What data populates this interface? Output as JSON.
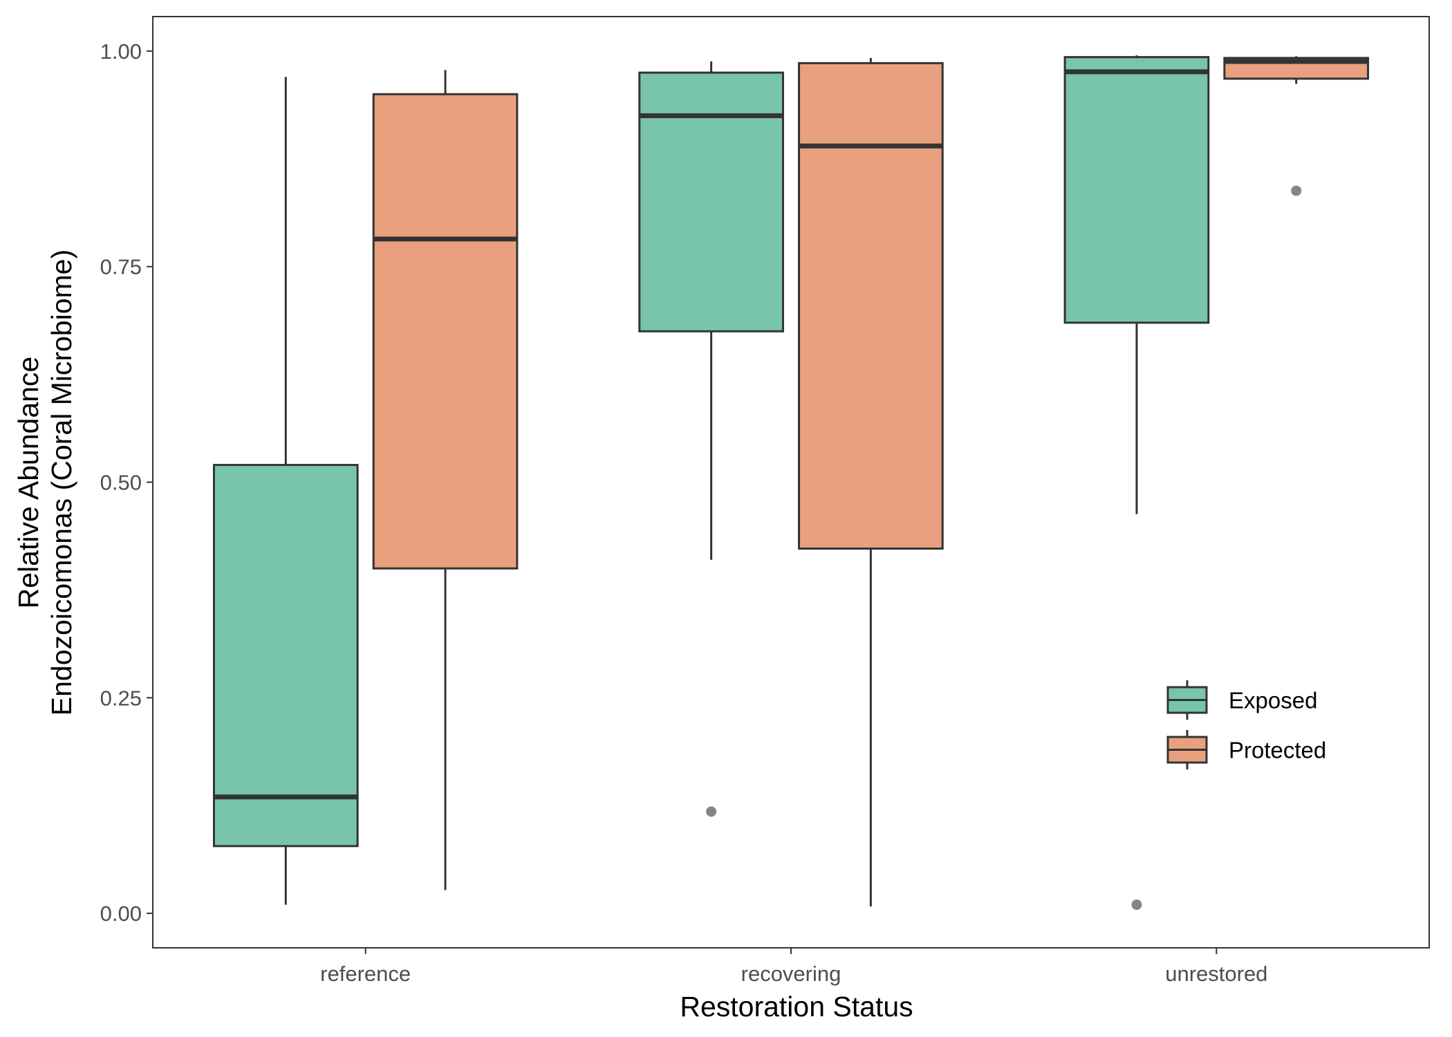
{
  "chart_data": {
    "type": "boxplot",
    "xlabel": "Restoration Status",
    "ylabel_lines": [
      "Relative Abundance",
      "Endozoicomonas (Coral Microbiome)"
    ],
    "categories": [
      "reference",
      "recovering",
      "unrestored"
    ],
    "ylim": [
      -0.04,
      1.04
    ],
    "yticks": [
      0.0,
      0.25,
      0.5,
      0.75,
      1.0
    ],
    "ytick_labels": [
      "0.00",
      "0.25",
      "0.50",
      "0.75",
      "1.00"
    ],
    "grid": false,
    "legend_position": "bottom-right inside",
    "series": [
      {
        "name": "Exposed",
        "color": "#78c5ab",
        "boxes": [
          {
            "category": "reference",
            "whisker_low": 0.01,
            "q1": 0.078,
            "median": 0.135,
            "q3": 0.52,
            "whisker_high": 0.97,
            "outliers": []
          },
          {
            "category": "recovering",
            "whisker_low": 0.41,
            "q1": 0.675,
            "median": 0.925,
            "q3": 0.975,
            "whisker_high": 0.988,
            "outliers": [
              0.118
            ]
          },
          {
            "category": "unrestored",
            "whisker_low": 0.463,
            "q1": 0.685,
            "median": 0.976,
            "q3": 0.993,
            "whisker_high": 0.995,
            "outliers": [
              0.01
            ]
          }
        ]
      },
      {
        "name": "Protected",
        "color": "#e8a07f",
        "boxes": [
          {
            "category": "reference",
            "whisker_low": 0.027,
            "q1": 0.4,
            "median": 0.782,
            "q3": 0.95,
            "whisker_high": 0.978,
            "outliers": []
          },
          {
            "category": "recovering",
            "whisker_low": 0.008,
            "q1": 0.423,
            "median": 0.89,
            "q3": 0.986,
            "whisker_high": 0.992,
            "outliers": []
          },
          {
            "category": "unrestored",
            "whisker_low": 0.962,
            "q1": 0.968,
            "median": 0.988,
            "q3": 0.992,
            "whisker_high": 0.994,
            "outliers": [
              0.838
            ]
          }
        ]
      }
    ]
  }
}
